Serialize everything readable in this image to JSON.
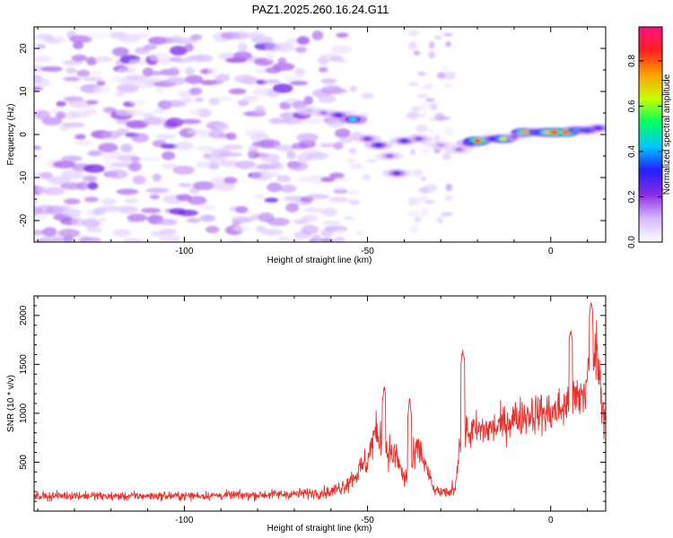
{
  "chart_data": [
    {
      "type": "heatmap",
      "title": "PAZ1.2025.260.16.24.G11",
      "xlabel": "Height of straight line (km)",
      "ylabel": "Frequency (Hz)",
      "xlim": [
        -141,
        15
      ],
      "ylim": [
        -25,
        25
      ],
      "x_ticks": [
        -100,
        -50,
        0
      ],
      "y_ticks": [
        -20,
        -10,
        0,
        10,
        20
      ],
      "grid": false,
      "colorbar": {
        "label": "Normalized spectral amplitude",
        "range": [
          0,
          0.95
        ],
        "ticks": [
          0.0,
          0.2,
          0.4,
          0.6,
          0.8
        ],
        "colormap": [
          "#ffffff",
          "#d6b8ff",
          "#8a2be2",
          "#2020ff",
          "#00c8ff",
          "#00ff60",
          "#c8ff00",
          "#ffa000",
          "#ff2020",
          "#ff1080"
        ]
      },
      "noise_region": {
        "x_range": [
          -141,
          -57
        ],
        "freq_range": [
          -25,
          25
        ],
        "amplitude_range": [
          0.0,
          0.18
        ]
      },
      "vertical_band": {
        "x_range": [
          -37,
          -28
        ],
        "freq_range": [
          -25,
          25
        ],
        "amplitude_range": [
          0.0,
          0.15
        ]
      },
      "signal_trace": [
        {
          "x": -66,
          "freq": 5.5,
          "amp": 0.12
        },
        {
          "x": -62,
          "freq": 5.0,
          "amp": 0.18
        },
        {
          "x": -58,
          "freq": 4.5,
          "amp": 0.3
        },
        {
          "x": -54,
          "freq": 3.5,
          "amp": 0.45
        },
        {
          "x": -50,
          "freq": -1.0,
          "amp": 0.25
        },
        {
          "x": -47,
          "freq": -2.5,
          "amp": 0.32
        },
        {
          "x": -44,
          "freq": -5.0,
          "amp": 0.2
        },
        {
          "x": -42,
          "freq": -9.0,
          "amp": 0.28
        },
        {
          "x": -40,
          "freq": -1.5,
          "amp": 0.3
        },
        {
          "x": -36,
          "freq": -1.0,
          "amp": 0.22
        },
        {
          "x": -30,
          "freq": -2.5,
          "amp": 0.15
        },
        {
          "x": -25,
          "freq": -3.5,
          "amp": 0.18
        },
        {
          "x": -22,
          "freq": -2.0,
          "amp": 0.35
        },
        {
          "x": -20,
          "freq": -1.5,
          "amp": 0.85
        },
        {
          "x": -16,
          "freq": -1.0,
          "amp": 0.3
        },
        {
          "x": -13,
          "freq": -1.0,
          "amp": 0.65
        },
        {
          "x": -10,
          "freq": -0.5,
          "amp": 0.2
        },
        {
          "x": -7,
          "freq": 0.5,
          "amp": 0.75
        },
        {
          "x": -4,
          "freq": 0.5,
          "amp": 0.35
        },
        {
          "x": -1,
          "freq": 0.5,
          "amp": 0.7
        },
        {
          "x": 1,
          "freq": 0.5,
          "amp": 0.85
        },
        {
          "x": 4,
          "freq": 0.5,
          "amp": 0.8
        },
        {
          "x": 7,
          "freq": 1.0,
          "amp": 0.4
        },
        {
          "x": 10,
          "freq": 1.0,
          "amp": 0.35
        },
        {
          "x": 13,
          "freq": 1.5,
          "amp": 0.3
        }
      ]
    },
    {
      "type": "line",
      "xlabel": "Height of straight line (km)",
      "ylabel": "SNR (10 * v/v)",
      "xlim": [
        -141,
        15
      ],
      "ylim": [
        0,
        2200
      ],
      "x_ticks": [
        -100,
        -50,
        0
      ],
      "y_ticks": [
        500,
        1000,
        1500,
        2000
      ],
      "grid": false,
      "series": [
        {
          "color": "#e8302c",
          "x": [
            -141,
            -130,
            -120,
            -110,
            -100,
            -90,
            -80,
            -70,
            -60,
            -56,
            -53,
            -50,
            -48,
            -46,
            -44,
            -42,
            -40,
            -38,
            -36,
            -34,
            -32,
            -30,
            -28,
            -26,
            -25,
            -23,
            -20,
            -15,
            -10,
            -5,
            0,
            3,
            5,
            7,
            9,
            10,
            11,
            12,
            13,
            14,
            15
          ],
          "y": [
            150,
            160,
            150,
            155,
            155,
            160,
            165,
            175,
            195,
            270,
            380,
            520,
            800,
            700,
            600,
            550,
            320,
            460,
            650,
            450,
            220,
            190,
            180,
            250,
            700,
            800,
            820,
            850,
            950,
            1000,
            1000,
            1050,
            1100,
            1150,
            1200,
            1350,
            1550,
            1750,
            1500,
            1150,
            900
          ],
          "peaks": [
            {
              "x": -45.5,
              "y": 1320
            },
            {
              "x": -38.5,
              "y": 1180
            },
            {
              "x": -24,
              "y": 1700
            },
            {
              "x": 5.5,
              "y": 1900
            },
            {
              "x": 11,
              "y": 2200
            }
          ],
          "noise_amplitude": [
            60,
            60,
            60,
            60,
            60,
            60,
            65,
            70,
            85,
            120,
            160,
            220,
            280,
            260,
            240,
            220,
            120,
            200,
            240,
            160,
            80,
            70,
            70,
            120,
            260,
            260,
            260,
            240,
            260,
            280,
            300,
            320,
            340,
            360,
            380,
            400,
            420,
            440,
            420,
            400,
            380
          ]
        }
      ]
    }
  ]
}
